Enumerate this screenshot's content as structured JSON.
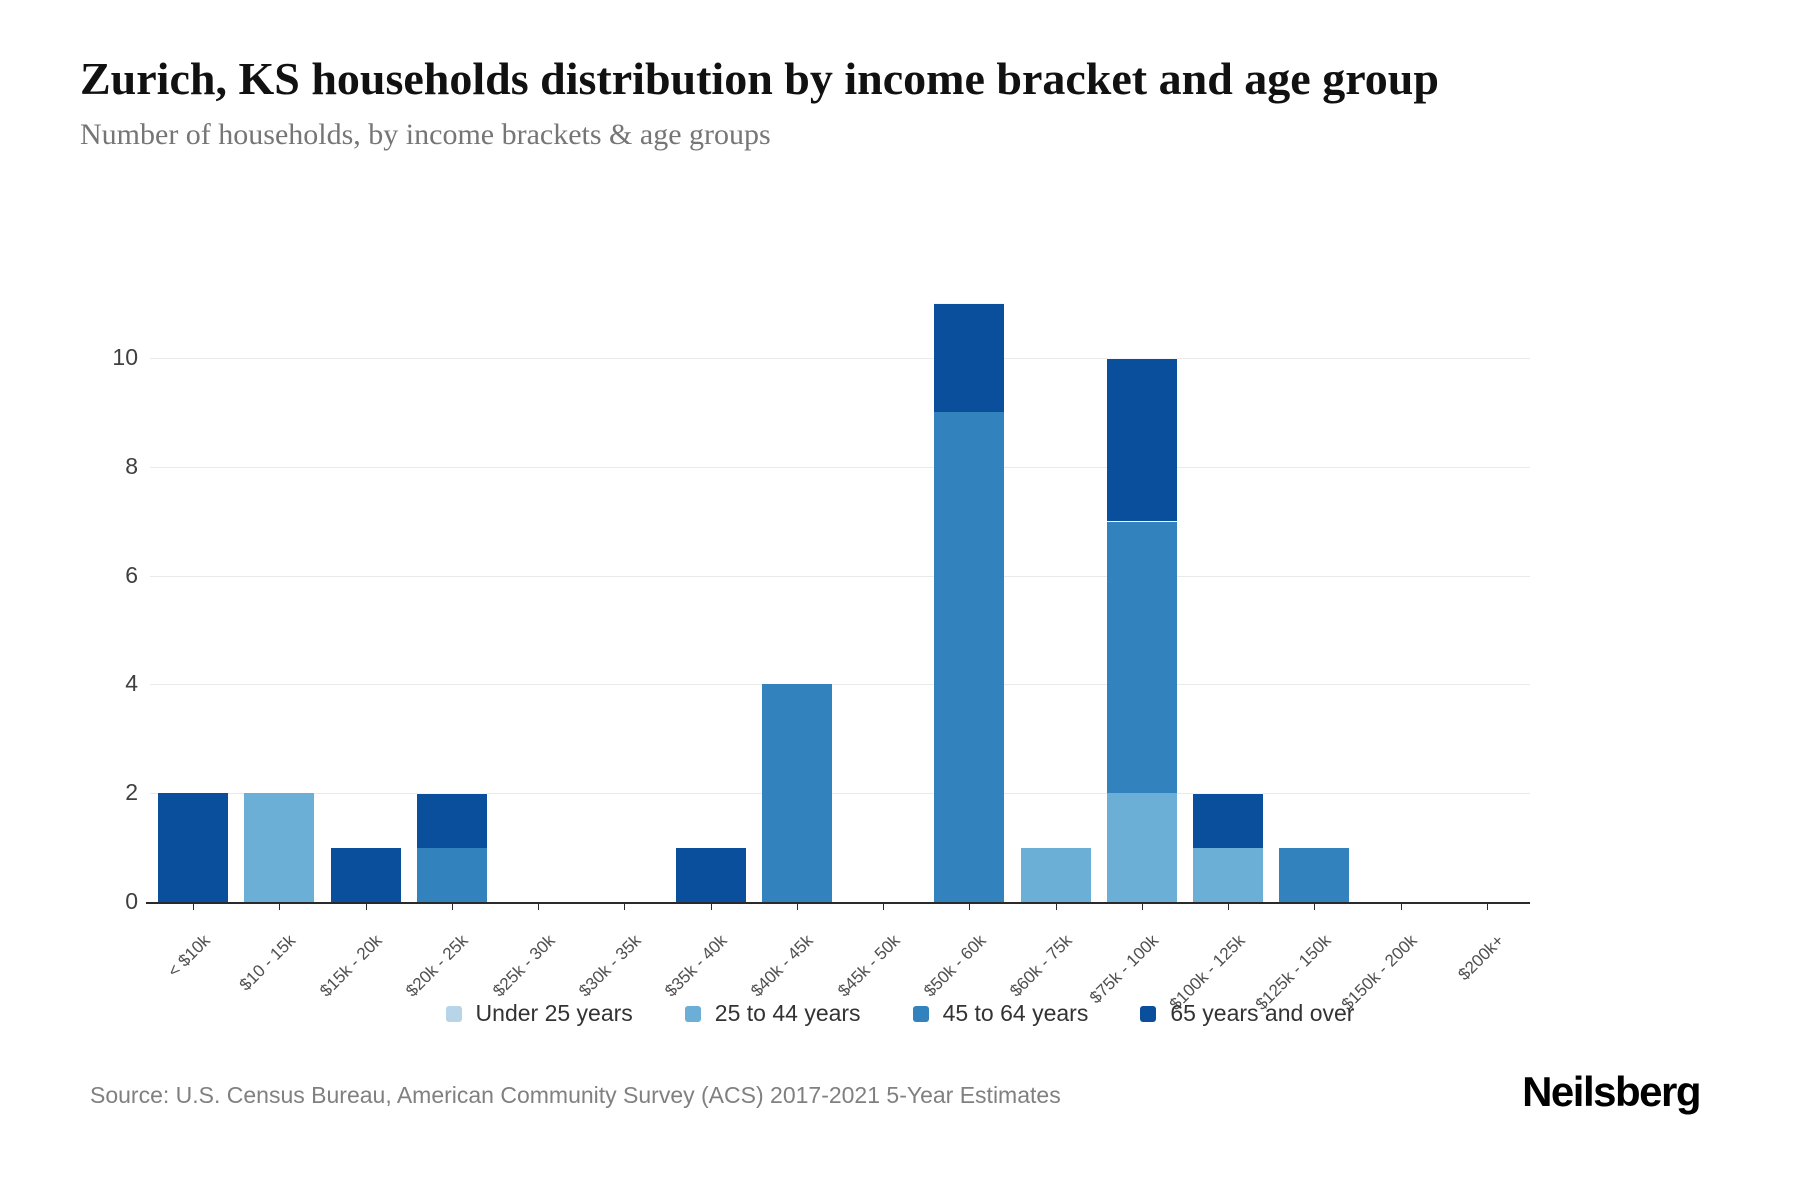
{
  "header": {
    "title": "Zurich, KS households distribution by income bracket and age group",
    "subtitle": "Number of households, by income brackets & age groups"
  },
  "footer": {
    "source": "Source: U.S. Census Bureau, American Community Survey (ACS) 2017-2021 5-Year Estimates",
    "brand": "Neilsberg"
  },
  "chart_data": {
    "type": "bar",
    "stacked": true,
    "title": "Zurich, KS households distribution by income bracket and age group",
    "xlabel": "",
    "ylabel": "",
    "grid": true,
    "legend_position": "bottom",
    "yticks": [
      0,
      2,
      4,
      6,
      8,
      10
    ],
    "ylim": [
      0,
      11.34
    ],
    "categories": [
      "< $10k",
      "$10 - 15k",
      "$15k - 20k",
      "$20k - 25k",
      "$25k - 30k",
      "$30k - 35k",
      "$35k - 40k",
      "$40k - 45k",
      "$45k - 50k",
      "$50k - 60k",
      "$60k - 75k",
      "$75k - 100k",
      "$100k - 125k",
      "$125k - 150k",
      "$150k - 200k",
      "$200k+"
    ],
    "series": [
      {
        "name": "Under 25 years",
        "color": "#b7d4e9",
        "values": [
          0,
          0,
          0,
          0,
          0,
          0,
          0,
          0,
          0,
          0,
          0,
          0,
          0,
          0,
          0,
          0
        ]
      },
      {
        "name": "25 to 44 years",
        "color": "#6baed6",
        "values": [
          0,
          2,
          0,
          0,
          0,
          0,
          0,
          0,
          0,
          0,
          1,
          2,
          1,
          0,
          0,
          0
        ]
      },
      {
        "name": "45 to 64 years",
        "color": "#3182bd",
        "values": [
          0,
          0,
          0,
          1,
          0,
          0,
          0,
          4,
          0,
          9,
          0,
          5,
          0,
          1,
          0,
          0
        ]
      },
      {
        "name": "65 years and over",
        "color": "#0a4f9c",
        "values": [
          2,
          0,
          1,
          1,
          0,
          0,
          1,
          0,
          0,
          2,
          0,
          3,
          1,
          0,
          0,
          0
        ]
      }
    ]
  },
  "layout_note": "stacked bars, youngest age group at bottom"
}
